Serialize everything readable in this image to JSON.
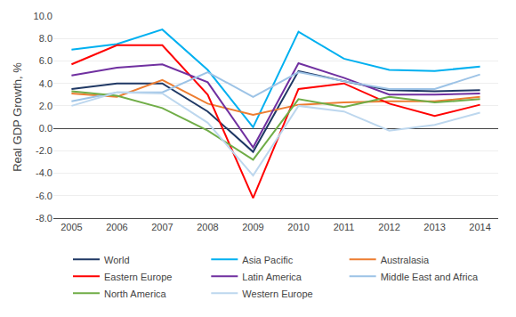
{
  "chart_data": {
    "type": "line",
    "ylabel": "Real GDP Growth, %",
    "x": [
      2005,
      2006,
      2007,
      2008,
      2009,
      2010,
      2011,
      2012,
      2013,
      2014
    ],
    "series": [
      {
        "name": "World",
        "color": "#1f3864",
        "values": [
          3.5,
          4.0,
          4.0,
          1.5,
          -2.1,
          5.1,
          4.2,
          3.4,
          3.3,
          3.4
        ]
      },
      {
        "name": "Asia Pacific",
        "color": "#00b0f0",
        "values": [
          7.0,
          7.5,
          8.8,
          5.2,
          0.1,
          8.6,
          6.2,
          5.2,
          5.1,
          5.5
        ]
      },
      {
        "name": "Australasia",
        "color": "#ed7d31",
        "values": [
          3.1,
          2.8,
          4.3,
          2.2,
          1.2,
          2.1,
          2.3,
          2.4,
          2.4,
          2.8
        ]
      },
      {
        "name": "Eastern Europe",
        "color": "#ff0000",
        "values": [
          5.7,
          7.4,
          7.4,
          3.0,
          -6.2,
          3.5,
          4.0,
          2.2,
          1.1,
          2.1
        ]
      },
      {
        "name": "Latin America",
        "color": "#7030a0",
        "values": [
          4.7,
          5.4,
          5.7,
          4.1,
          -1.7,
          5.8,
          4.5,
          3.0,
          3.0,
          3.1
        ]
      },
      {
        "name": "Middle East and Africa",
        "color": "#9dc3e6",
        "values": [
          2.4,
          3.2,
          3.2,
          5.0,
          2.8,
          5.0,
          4.2,
          3.5,
          3.5,
          4.8
        ]
      },
      {
        "name": "North America",
        "color": "#70ad47",
        "values": [
          3.3,
          2.9,
          1.8,
          -0.2,
          -2.8,
          2.6,
          1.9,
          2.8,
          2.3,
          2.6
        ]
      },
      {
        "name": "Western Europe",
        "color": "#bdd7ee",
        "values": [
          2.0,
          3.2,
          3.1,
          0.5,
          -4.2,
          2.0,
          1.5,
          -0.2,
          0.3,
          1.4
        ]
      }
    ],
    "xlim": [
      2004.6,
      2014.4
    ],
    "xticks": [
      2005,
      2006,
      2007,
      2008,
      2009,
      2010,
      2011,
      2012,
      2013,
      2014
    ],
    "ylim": [
      -8.0,
      10.0
    ],
    "yticks": [
      {
        "value": -8.0,
        "label": "-8.0"
      },
      {
        "value": -6.0,
        "label": "-6.0"
      },
      {
        "value": -4.0,
        "label": "-4.0"
      },
      {
        "value": -2.0,
        "label": "-2.0"
      },
      {
        "value": 0.0,
        "label": "0.0"
      },
      {
        "value": 2.0,
        "label": "2.0"
      },
      {
        "value": 4.0,
        "label": "4.0"
      },
      {
        "value": 6.0,
        "label": "6.0"
      },
      {
        "value": 8.0,
        "label": "8.0"
      },
      {
        "value": 10.0,
        "label": "10.0"
      }
    ],
    "grid": true,
    "legend": "bottom"
  }
}
